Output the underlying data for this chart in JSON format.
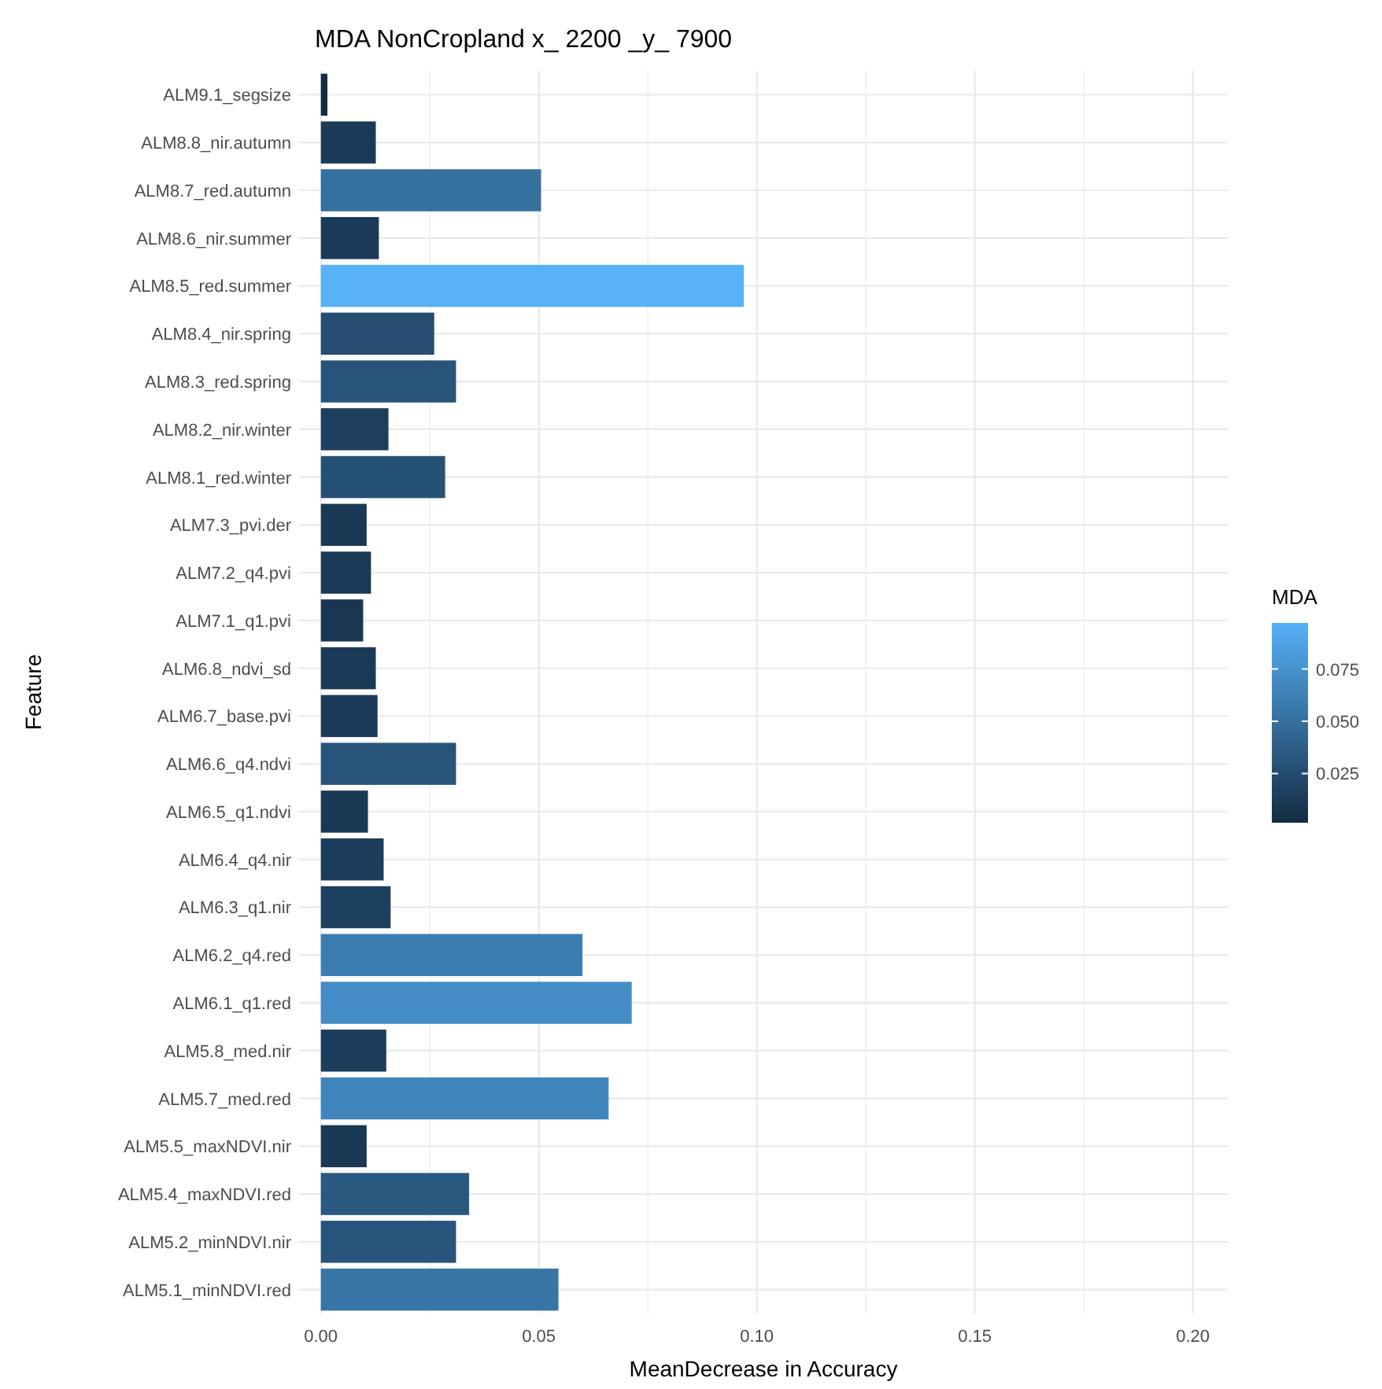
{
  "chart_data": {
    "type": "bar",
    "orientation": "horizontal",
    "title": "MDA NonCropland  x_ 2200 _y_ 7900",
    "xlabel": "MeanDecrease in Accuracy",
    "ylabel": "Feature",
    "clabel": "MDA",
    "categories": [
      "ALM9.1_segsize",
      "ALM8.8_nir.autumn",
      "ALM8.7_red.autumn",
      "ALM8.6_nir.summer",
      "ALM8.5_red.summer",
      "ALM8.4_nir.spring",
      "ALM8.3_red.spring",
      "ALM8.2_nir.winter",
      "ALM8.1_red.winter",
      "ALM7.3_pvi.der",
      "ALM7.2_q4.pvi",
      "ALM7.1_q1.pvi",
      "ALM6.8_ndvi_sd",
      "ALM6.7_base.pvi",
      "ALM6.6_q4.ndvi",
      "ALM6.5_q1.ndvi",
      "ALM6.4_q4.nir",
      "ALM6.3_q1.nir",
      "ALM6.2_q4.red",
      "ALM6.1_q1.red",
      "ALM5.8_med.nir",
      "ALM5.7_med.red",
      "ALM5.5_maxNDVI.nir",
      "ALM5.4_maxNDVI.red",
      "ALM5.2_minNDVI.nir",
      "ALM5.1_minNDVI.red"
    ],
    "values": [
      0.0015,
      0.0126,
      0.0505,
      0.0133,
      0.097,
      0.026,
      0.031,
      0.0155,
      0.0285,
      0.0105,
      0.0115,
      0.0097,
      0.0126,
      0.013,
      0.031,
      0.0108,
      0.0144,
      0.016,
      0.06,
      0.0713,
      0.015,
      0.066,
      0.0105,
      0.034,
      0.031,
      0.0545
    ],
    "colors": [
      "#132b43",
      "#1b3a58",
      "#35709f",
      "#1b3b59",
      "#56b1f7",
      "#244d71",
      "#28547b",
      "#1d3f5d",
      "#265176",
      "#193854",
      "#1a3956",
      "#193752",
      "#1b3a58",
      "#1b3b59",
      "#28547b",
      "#193854",
      "#1c3d5b",
      "#1d3f5e",
      "#3c7db1",
      "#448dc7",
      "#1c3e5c",
      "#4085bc",
      "#193854",
      "#2a5980",
      "#28547b",
      "#3875a7"
    ],
    "xlim": [
      -0.005,
      0.208
    ],
    "xticks": [
      {
        "value": 0,
        "label": "0.00"
      },
      {
        "value": 0.025,
        "label": null
      },
      {
        "value": 0.05,
        "label": "0.05"
      },
      {
        "value": 0.075,
        "label": null
      },
      {
        "value": 0.1,
        "label": "0.10"
      },
      {
        "value": 0.125,
        "label": null
      },
      {
        "value": 0.15,
        "label": "0.15"
      },
      {
        "value": 0.175,
        "label": null
      },
      {
        "value": 0.2,
        "label": "0.20"
      }
    ],
    "clim": [
      0.0015,
      0.097
    ],
    "cticks": [
      {
        "value": 0.025,
        "label": "0.025"
      },
      {
        "value": 0.05,
        "label": "0.050"
      },
      {
        "value": 0.075,
        "label": "0.075"
      }
    ],
    "grid": true
  }
}
